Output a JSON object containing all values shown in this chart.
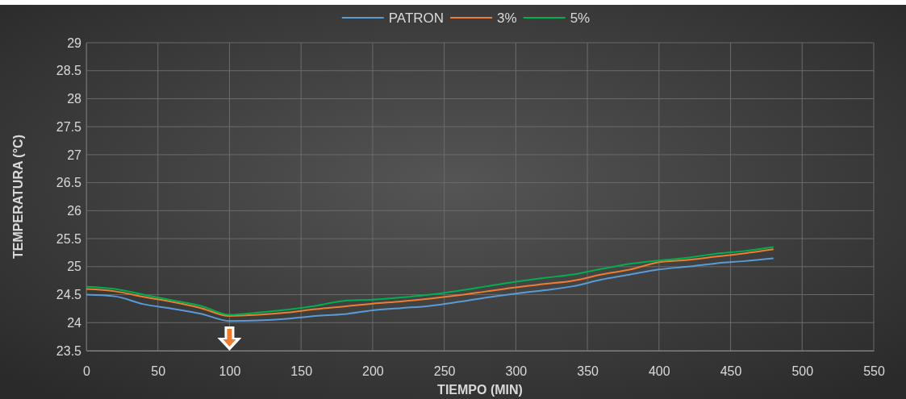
{
  "chart_data": {
    "type": "line",
    "xlabel": "TIEMPO (MIN)",
    "ylabel": "TEMPERATURA (°C)",
    "x": [
      0,
      20,
      40,
      60,
      80,
      100,
      120,
      140,
      160,
      180,
      200,
      220,
      240,
      260,
      280,
      300,
      320,
      340,
      360,
      380,
      400,
      420,
      440,
      460,
      480
    ],
    "series": [
      {
        "name": "PATRON",
        "color": "#5b9bd5",
        "values": [
          24.5,
          24.47,
          24.33,
          24.25,
          24.16,
          24.03,
          24.04,
          24.07,
          24.12,
          24.15,
          24.22,
          24.26,
          24.3,
          24.37,
          24.45,
          24.52,
          24.58,
          24.65,
          24.77,
          24.86,
          24.95,
          25.0,
          25.06,
          25.1,
          25.15
        ]
      },
      {
        "name": "3%",
        "color": "#ed7d31",
        "values": [
          24.6,
          24.56,
          24.46,
          24.37,
          24.26,
          24.12,
          24.14,
          24.18,
          24.24,
          24.29,
          24.34,
          24.38,
          24.43,
          24.49,
          24.56,
          24.63,
          24.69,
          24.75,
          24.86,
          24.95,
          25.08,
          25.12,
          25.18,
          25.24,
          25.31
        ]
      },
      {
        "name": "5%",
        "color": "#00b050",
        "values": [
          24.64,
          24.6,
          24.5,
          24.4,
          24.3,
          24.14,
          24.18,
          24.23,
          24.3,
          24.39,
          24.41,
          24.45,
          24.5,
          24.57,
          24.65,
          24.73,
          24.8,
          24.86,
          24.96,
          25.05,
          25.11,
          25.16,
          25.23,
          25.28,
          25.35
        ]
      }
    ],
    "xlim": [
      0,
      550
    ],
    "xticks": [
      0,
      50,
      100,
      150,
      200,
      250,
      300,
      350,
      400,
      450,
      500,
      550
    ],
    "ylim": [
      23.5,
      29
    ],
    "yticks": [
      23.5,
      24,
      24.5,
      25,
      25.5,
      26,
      26.5,
      27,
      27.5,
      28,
      28.5,
      29
    ],
    "grid": true,
    "legend": "top",
    "marker": "none",
    "line_style": "solid"
  }
}
